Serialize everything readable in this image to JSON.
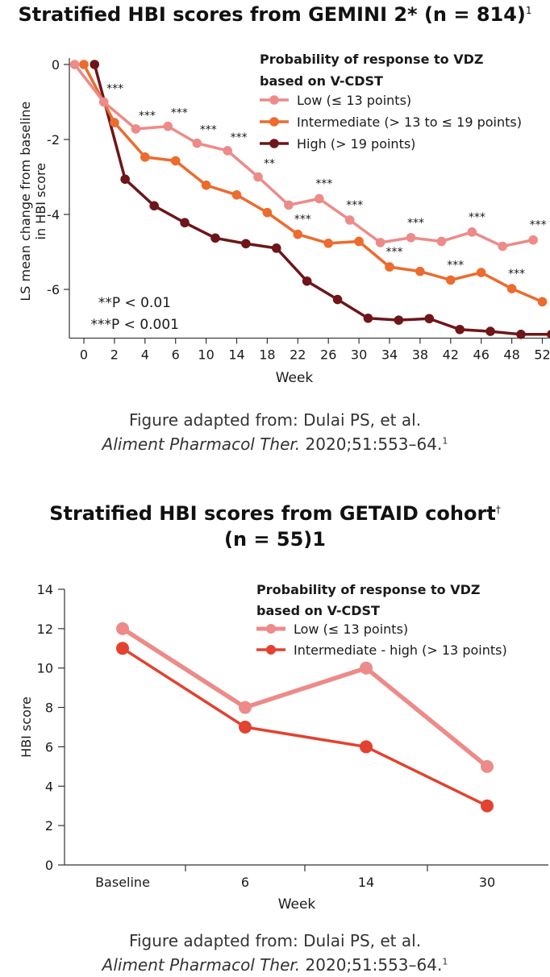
{
  "chart1": {
    "title": "Stratified HBI scores from GEMINI 2* (n = 814)",
    "title_sup": "1",
    "caption_line1": "Figure adapted from: Dulai PS, et al.",
    "caption_journal": "Aliment Pharmacol Ther.",
    "caption_ref": " 2020;51:553–64.",
    "caption_sup": "1",
    "pvalue_note1": "**P < 0.01",
    "pvalue_note2": "***P < 0.001"
  },
  "chart2": {
    "title_line1": "Stratified HBI scores from GETAID cohort",
    "title_dagger": "†",
    "title_line2": "(n = 55)1",
    "caption_line1": "Figure adapted from: Dulai PS, et al.",
    "caption_journal": "Aliment Pharmacol Ther.",
    "caption_ref": " 2020;51:553–64.",
    "caption_sup": "1"
  },
  "chart_data": [
    {
      "type": "line",
      "title": "Stratified HBI scores from GEMINI 2* (n = 814)",
      "xlabel": "Week",
      "ylabel": "LS mean change from baseline in HBI score",
      "x_tick_labels": [
        "0",
        "2",
        "4",
        "6",
        "10",
        "14",
        "18",
        "22",
        "26",
        "30",
        "34",
        "38",
        "42",
        "46",
        "48",
        "52"
      ],
      "y_ticks": [
        0,
        -2,
        -4,
        -6
      ],
      "ylim": [
        -7.3,
        0.25
      ],
      "grid": false,
      "legend_title": "Probability of response to VDZ based on V-CDST",
      "legend_position": "top-right",
      "series": [
        {
          "name": "Low (≤ 13 points)",
          "color": "#ec8b89",
          "points": [
            {
              "tick": 0,
              "dx": -0.3,
              "y": 0,
              "sig": ""
            },
            {
              "tick": 1,
              "dx": -0.35,
              "y": -1.0,
              "sig": "***"
            },
            {
              "tick": 2,
              "dx": -0.3,
              "y": -1.72,
              "sig": "***"
            },
            {
              "tick": 3,
              "dx": -0.25,
              "y": -1.65,
              "sig": "***"
            },
            {
              "tick": 4,
              "dx": -0.3,
              "y": -2.1,
              "sig": "***"
            },
            {
              "tick": 5,
              "dx": -0.3,
              "y": -2.3,
              "sig": "***"
            },
            {
              "tick": 6,
              "dx": -0.3,
              "y": -3.0,
              "sig": "**"
            },
            {
              "tick": 7,
              "dx": -0.3,
              "y": -3.75,
              "sig": ""
            },
            {
              "tick": 8,
              "dx": -0.3,
              "y": -3.58,
              "sig": "***"
            },
            {
              "tick": 9,
              "dx": -0.3,
              "y": -4.15,
              "sig": "***"
            },
            {
              "tick": 10,
              "dx": -0.3,
              "y": -4.75,
              "sig": ""
            },
            {
              "tick": 11,
              "dx": -0.3,
              "y": -4.62,
              "sig": "***"
            },
            {
              "tick": 12,
              "dx": -0.3,
              "y": -4.72,
              "sig": ""
            },
            {
              "tick": 13,
              "dx": -0.3,
              "y": -4.47,
              "sig": "***"
            },
            {
              "tick": 14,
              "dx": -0.3,
              "y": -4.85,
              "sig": ""
            },
            {
              "tick": 15,
              "dx": -0.3,
              "y": -4.68,
              "sig": "***"
            }
          ]
        },
        {
          "name": "Intermediate (> 13 to ≤ 19 points)",
          "color": "#ec6b2e",
          "points": [
            {
              "tick": 0,
              "dx": 0,
              "y": 0,
              "sig": ""
            },
            {
              "tick": 1,
              "dx": 0,
              "y": -1.55,
              "sig": ""
            },
            {
              "tick": 2,
              "dx": 0,
              "y": -2.47,
              "sig": ""
            },
            {
              "tick": 3,
              "dx": 0,
              "y": -2.57,
              "sig": ""
            },
            {
              "tick": 4,
              "dx": 0,
              "y": -3.22,
              "sig": ""
            },
            {
              "tick": 5,
              "dx": 0,
              "y": -3.48,
              "sig": ""
            },
            {
              "tick": 6,
              "dx": 0,
              "y": -3.95,
              "sig": ""
            },
            {
              "tick": 7,
              "dx": 0,
              "y": -4.53,
              "sig": "***"
            },
            {
              "tick": 8,
              "dx": 0,
              "y": -4.77,
              "sig": ""
            },
            {
              "tick": 9,
              "dx": 0,
              "y": -4.72,
              "sig": ""
            },
            {
              "tick": 10,
              "dx": 0,
              "y": -5.4,
              "sig": "***"
            },
            {
              "tick": 11,
              "dx": 0,
              "y": -5.52,
              "sig": ""
            },
            {
              "tick": 12,
              "dx": 0,
              "y": -5.75,
              "sig": "***"
            },
            {
              "tick": 13,
              "dx": 0,
              "y": -5.55,
              "sig": ""
            },
            {
              "tick": 14,
              "dx": 0,
              "y": -5.98,
              "sig": "***"
            },
            {
              "tick": 15,
              "dx": 0,
              "y": -6.33,
              "sig": ""
            }
          ]
        },
        {
          "name": "High (> 19 points)",
          "color": "#6e1619",
          "points": [
            {
              "tick": 0,
              "dx": 0.35,
              "y": 0
            },
            {
              "tick": 1,
              "dx": 0.35,
              "y": -3.06
            },
            {
              "tick": 2,
              "dx": 0.3,
              "y": -3.77
            },
            {
              "tick": 3,
              "dx": 0.3,
              "y": -4.22
            },
            {
              "tick": 4,
              "dx": 0.3,
              "y": -4.63
            },
            {
              "tick": 5,
              "dx": 0.3,
              "y": -4.78
            },
            {
              "tick": 6,
              "dx": 0.3,
              "y": -4.9
            },
            {
              "tick": 7,
              "dx": 0.3,
              "y": -5.78
            },
            {
              "tick": 8,
              "dx": 0.3,
              "y": -6.27
            },
            {
              "tick": 9,
              "dx": 0.3,
              "y": -6.77
            },
            {
              "tick": 10,
              "dx": 0.3,
              "y": -6.82
            },
            {
              "tick": 11,
              "dx": 0.3,
              "y": -6.78
            },
            {
              "tick": 12,
              "dx": 0.3,
              "y": -7.07
            },
            {
              "tick": 13,
              "dx": 0.3,
              "y": -7.12
            },
            {
              "tick": 14,
              "dx": 0.3,
              "y": -7.2
            },
            {
              "tick": 15,
              "dx": 0.3,
              "y": -7.2
            }
          ]
        }
      ]
    },
    {
      "type": "line",
      "title": "Stratified HBI scores from GETAID cohort† (n = 55)1",
      "xlabel": "Week",
      "ylabel": "HBI score",
      "categories": [
        "Baseline",
        "6",
        "14",
        "30"
      ],
      "y_ticks": [
        0,
        2,
        4,
        6,
        8,
        10,
        12,
        14
      ],
      "ylim": [
        0,
        14
      ],
      "grid": false,
      "legend_title": "Probability of response to VDZ based on V-CDST",
      "legend_position": "top-right",
      "series": [
        {
          "name": "Low (≤ 13 points)",
          "color": "#ec8b89",
          "values": [
            12,
            8,
            10,
            5
          ]
        },
        {
          "name": "Intermediate - high (> 13 points)",
          "color": "#e2422f",
          "values": [
            11,
            7,
            6,
            3
          ]
        }
      ]
    }
  ]
}
